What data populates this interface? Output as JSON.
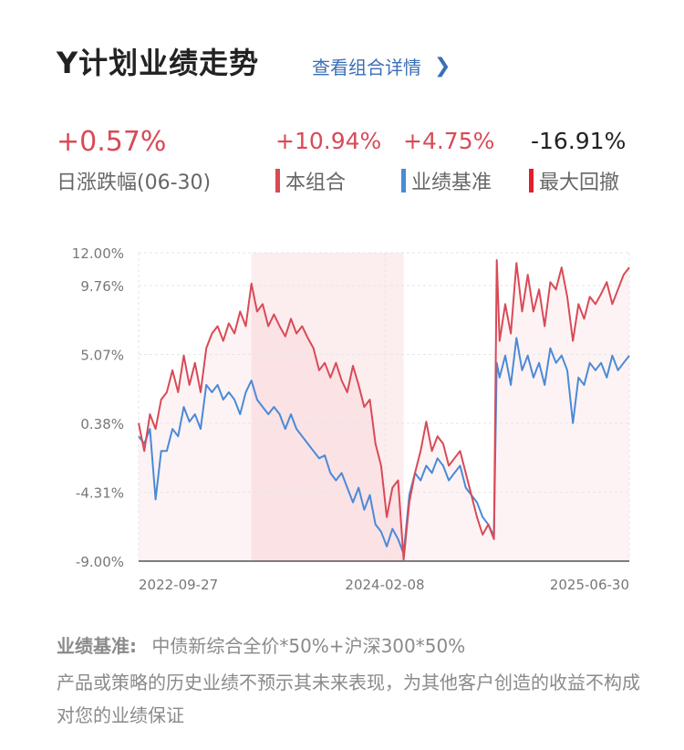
{
  "header": {
    "title": "Y计划业绩走势",
    "detail_link": "查看组合详情"
  },
  "stats": {
    "daily_change_value": "+0.57%",
    "daily_change_label": "日涨跌幅(06-30)",
    "portfolio_value": "+10.94%",
    "portfolio_label": "本组合",
    "benchmark_value": "+4.75%",
    "benchmark_label": "业绩基准",
    "drawdown_value": "-16.91%",
    "drawdown_label": "最大回撤"
  },
  "colors": {
    "portfolio": "#d94a57",
    "benchmark": "#4a8ad8",
    "drawdown": "#e0202d",
    "link": "#3b6fb6"
  },
  "chart_data": {
    "type": "line",
    "y_ticks": [
      "12.00%",
      "9.76%",
      "5.07%",
      "0.38%",
      "-4.31%",
      "-9.00%"
    ],
    "ylim": [
      -9.0,
      12.0
    ],
    "x_ticks": [
      "2022-09-27",
      "2024-02-08",
      "2025-06-30"
    ],
    "grid": true,
    "series": [
      {
        "name": "本组合",
        "color": "#d94a57",
        "values": [
          [
            0,
            0.4
          ],
          [
            2,
            -1.5
          ],
          [
            4,
            1.0
          ],
          [
            6,
            0.0
          ],
          [
            8,
            2.0
          ],
          [
            10,
            2.5
          ],
          [
            12,
            4.0
          ],
          [
            14,
            2.5
          ],
          [
            16,
            5.0
          ],
          [
            18,
            3.0
          ],
          [
            20,
            4.5
          ],
          [
            22,
            2.5
          ],
          [
            24,
            5.5
          ],
          [
            26,
            6.5
          ],
          [
            28,
            7.0
          ],
          [
            30,
            6.0
          ],
          [
            32,
            7.2
          ],
          [
            34,
            6.5
          ],
          [
            36,
            8.0
          ],
          [
            38,
            7.0
          ],
          [
            40,
            9.9
          ],
          [
            42,
            8.0
          ],
          [
            44,
            8.5
          ],
          [
            46,
            7.0
          ],
          [
            48,
            7.8
          ],
          [
            50,
            7.0
          ],
          [
            52,
            6.3
          ],
          [
            54,
            7.5
          ],
          [
            56,
            6.5
          ],
          [
            58,
            7.0
          ],
          [
            60,
            6.2
          ],
          [
            62,
            5.5
          ],
          [
            64,
            4.0
          ],
          [
            66,
            4.5
          ],
          [
            68,
            3.5
          ],
          [
            70,
            4.5
          ],
          [
            72,
            3.3
          ],
          [
            74,
            2.5
          ],
          [
            76,
            4.3
          ],
          [
            78,
            3.0
          ],
          [
            80,
            1.5
          ],
          [
            82,
            2.0
          ],
          [
            84,
            -1.0
          ],
          [
            86,
            -2.5
          ],
          [
            88,
            -6.0
          ],
          [
            90,
            -4.0
          ],
          [
            92,
            -3.5
          ],
          [
            94,
            -8.9
          ],
          [
            96,
            -5.0
          ],
          [
            98,
            -3.0
          ],
          [
            100,
            -1.5
          ],
          [
            102,
            0.5
          ],
          [
            104,
            -1.5
          ],
          [
            106,
            -0.5
          ],
          [
            108,
            -1.0
          ],
          [
            110,
            -2.5
          ],
          [
            112,
            -2.0
          ],
          [
            114,
            -1.5
          ],
          [
            116,
            -3.0
          ],
          [
            118,
            -4.5
          ],
          [
            120,
            -6.0
          ],
          [
            122,
            -7.2
          ],
          [
            124,
            -6.5
          ],
          [
            126,
            -7.5
          ],
          [
            127,
            11.5
          ],
          [
            128,
            6.0
          ],
          [
            130,
            8.5
          ],
          [
            132,
            6.5
          ],
          [
            134,
            11.3
          ],
          [
            136,
            8.0
          ],
          [
            138,
            10.5
          ],
          [
            140,
            8.0
          ],
          [
            142,
            9.5
          ],
          [
            144,
            7.0
          ],
          [
            146,
            10.0
          ],
          [
            148,
            9.5
          ],
          [
            150,
            11.0
          ],
          [
            152,
            9.0
          ],
          [
            154,
            6.0
          ],
          [
            156,
            8.5
          ],
          [
            158,
            7.5
          ],
          [
            160,
            9.0
          ],
          [
            162,
            8.5
          ],
          [
            164,
            9.2
          ],
          [
            166,
            10.0
          ],
          [
            168,
            8.5
          ],
          [
            170,
            9.5
          ],
          [
            172,
            10.5
          ],
          [
            174,
            11.0
          ]
        ]
      },
      {
        "name": "业绩基准",
        "color": "#4a8ad8",
        "values": [
          [
            0,
            -0.5
          ],
          [
            2,
            -1.0
          ],
          [
            4,
            0.0
          ],
          [
            6,
            -4.8
          ],
          [
            8,
            -1.5
          ],
          [
            10,
            -1.5
          ],
          [
            12,
            0.0
          ],
          [
            14,
            -0.5
          ],
          [
            16,
            1.5
          ],
          [
            18,
            0.5
          ],
          [
            20,
            1.0
          ],
          [
            22,
            0.0
          ],
          [
            24,
            3.0
          ],
          [
            26,
            2.5
          ],
          [
            28,
            3.0
          ],
          [
            30,
            2.0
          ],
          [
            32,
            2.5
          ],
          [
            34,
            2.0
          ],
          [
            36,
            1.0
          ],
          [
            38,
            2.5
          ],
          [
            40,
            3.3
          ],
          [
            42,
            2.0
          ],
          [
            44,
            1.5
          ],
          [
            46,
            1.0
          ],
          [
            48,
            1.5
          ],
          [
            50,
            1.0
          ],
          [
            52,
            0.0
          ],
          [
            54,
            1.0
          ],
          [
            56,
            0.0
          ],
          [
            58,
            -0.5
          ],
          [
            60,
            -1.0
          ],
          [
            62,
            -1.5
          ],
          [
            64,
            -2.0
          ],
          [
            66,
            -1.8
          ],
          [
            68,
            -3.0
          ],
          [
            70,
            -3.5
          ],
          [
            72,
            -3.0
          ],
          [
            74,
            -4.0
          ],
          [
            76,
            -5.0
          ],
          [
            78,
            -4.0
          ],
          [
            80,
            -5.5
          ],
          [
            82,
            -4.5
          ],
          [
            84,
            -6.5
          ],
          [
            86,
            -7.0
          ],
          [
            88,
            -8.0
          ],
          [
            90,
            -6.8
          ],
          [
            92,
            -7.5
          ],
          [
            94,
            -8.5
          ],
          [
            96,
            -4.5
          ],
          [
            98,
            -3.0
          ],
          [
            100,
            -3.5
          ],
          [
            102,
            -2.5
          ],
          [
            104,
            -3.0
          ],
          [
            106,
            -2.0
          ],
          [
            108,
            -2.5
          ],
          [
            110,
            -3.5
          ],
          [
            112,
            -3.0
          ],
          [
            114,
            -2.5
          ],
          [
            116,
            -4.0
          ],
          [
            118,
            -4.5
          ],
          [
            120,
            -5.0
          ],
          [
            122,
            -6.0
          ],
          [
            124,
            -6.5
          ],
          [
            126,
            -7.3
          ],
          [
            127,
            4.5
          ],
          [
            128,
            3.5
          ],
          [
            130,
            5.0
          ],
          [
            132,
            3.0
          ],
          [
            134,
            6.2
          ],
          [
            136,
            4.0
          ],
          [
            138,
            5.0
          ],
          [
            140,
            3.5
          ],
          [
            142,
            4.5
          ],
          [
            144,
            3.0
          ],
          [
            146,
            5.5
          ],
          [
            148,
            4.5
          ],
          [
            150,
            5.0
          ],
          [
            152,
            4.0
          ],
          [
            154,
            0.4
          ],
          [
            156,
            3.5
          ],
          [
            158,
            3.0
          ],
          [
            160,
            4.5
          ],
          [
            162,
            4.0
          ],
          [
            164,
            4.5
          ],
          [
            166,
            3.5
          ],
          [
            168,
            5.0
          ],
          [
            170,
            4.0
          ],
          [
            172,
            4.5
          ],
          [
            174,
            5.0
          ]
        ]
      }
    ],
    "drawdown_highlight": {
      "name": "最大回撤",
      "start_x": 40,
      "end_x": 94
    },
    "x_domain": [
      0,
      174
    ]
  },
  "footer": {
    "benchmark_label": "业绩基准:",
    "benchmark_text": "中债新综合全价*50%+沪深300*50%",
    "disclaimer": "产品或策略的历史业绩不预示其未来表现，为其他客户创造的收益不构成对您的业绩保证"
  }
}
